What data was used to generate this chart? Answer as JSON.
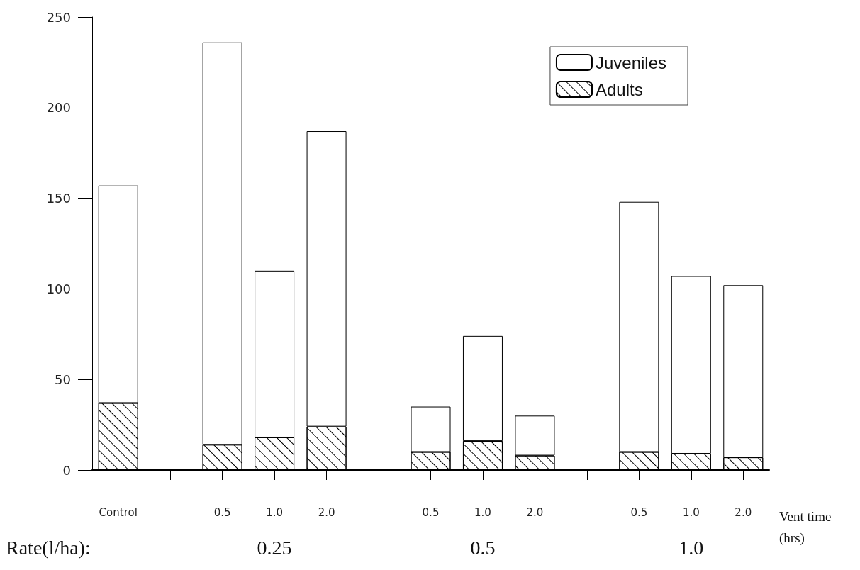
{
  "chart_data": {
    "type": "bar",
    "stacked": true,
    "categories": [
      "Control",
      null,
      "0.5",
      "1.0",
      "2.0",
      null,
      "0.5",
      "1.0",
      "2.0",
      null,
      "0.5",
      "1.0",
      "2.0"
    ],
    "xlabel": "Vent time\n(hrs)",
    "series": [
      {
        "name": "Adults",
        "color": "#ffffff",
        "values": [
          37,
          null,
          14,
          18,
          24,
          null,
          10,
          16,
          8,
          null,
          10,
          9,
          7
        ]
      },
      {
        "name": "Juveniles",
        "color": "#ffffff",
        "values": [
          120,
          null,
          222,
          92,
          163,
          null,
          25,
          58,
          22,
          null,
          138,
          98,
          95
        ]
      }
    ],
    "ylim": [
      0,
      250
    ],
    "yticks": [
      0,
      50,
      100,
      150,
      200,
      250
    ],
    "grid": false,
    "legend": "top right",
    "annotations": [
      "Rate(l/ha):",
      "0.25",
      "0.5",
      "1.0"
    ]
  }
}
